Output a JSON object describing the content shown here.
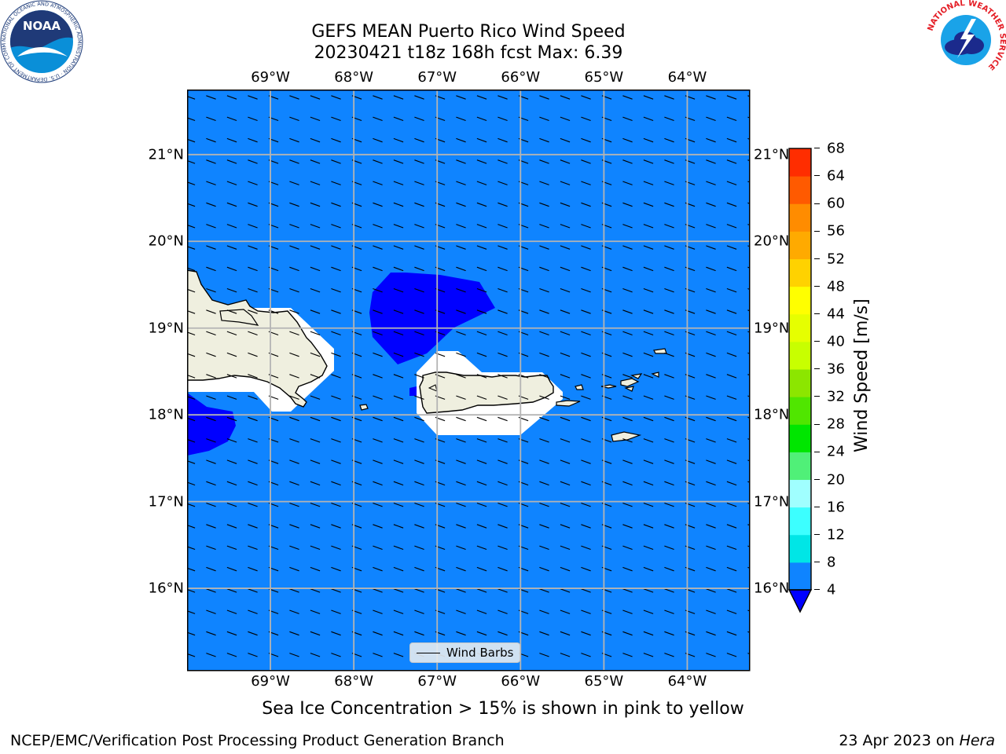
{
  "header": {
    "title": "GEFS MEAN Puerto Rico Wind Speed",
    "subtitle": "20230421 t18z 168h fcst   Max: 6.39"
  },
  "logos": {
    "left": {
      "name": "NOAA logo",
      "text": "NOAA",
      "ring_text": "NATIONAL OCEANIC AND ATMOSPHERIC ADMINISTRATION · U.S. DEPARTMENT OF COMMERCE"
    },
    "right": {
      "name": "National Weather Service logo",
      "ring_text": "NATIONAL WEATHER SERVICE"
    }
  },
  "map": {
    "lon_labels": [
      "69°W",
      "68°W",
      "67°W",
      "66°W",
      "65°W",
      "64°W"
    ],
    "lat_labels": [
      "21°N",
      "20°N",
      "19°N",
      "18°N",
      "17°N",
      "16°N"
    ],
    "lon_values": [
      -69,
      -68,
      -67,
      -66,
      -65,
      -64
    ],
    "lat_values": [
      21,
      20,
      19,
      18,
      17,
      16
    ],
    "extent": {
      "lon": [
        -70.0,
        -63.25
      ],
      "lat": [
        15.05,
        21.75
      ]
    },
    "ocean_color": "#0f84ff",
    "low_wind_color": "#0000ff",
    "land_color": "#efefdf",
    "masked_color": "#ffffff",
    "wind_direction_deg_from_north_toward": 110,
    "legend": {
      "label": "Wind Barbs"
    }
  },
  "colorbar": {
    "label": "Wind Speed [m/s]",
    "ticks": [
      "68",
      "64",
      "60",
      "56",
      "52",
      "48",
      "44",
      "40",
      "36",
      "32",
      "28",
      "24",
      "20",
      "16",
      "12",
      "8",
      "4"
    ],
    "levels": [
      4,
      8,
      12,
      16,
      20,
      24,
      28,
      32,
      36,
      40,
      44,
      48,
      52,
      56,
      60,
      64,
      68
    ],
    "colors": [
      "#0f84ff",
      "#00e6e6",
      "#3cffff",
      "#a0ffff",
      "#50f078",
      "#00e600",
      "#50e600",
      "#8ce600",
      "#c8ff00",
      "#e6ff00",
      "#ffff00",
      "#ffd200",
      "#ffaa00",
      "#ff8c00",
      "#ff5a00",
      "#ff2d00"
    ],
    "extend_color": "#0000ff"
  },
  "footer": {
    "note": "Sea Ice Concentration > 15% is shown in pink to yellow",
    "left": "NCEP/EMC/Verification Post Processing Product Generation Branch",
    "right_prefix": "23 Apr 2023 on ",
    "right_host": "Hera"
  }
}
